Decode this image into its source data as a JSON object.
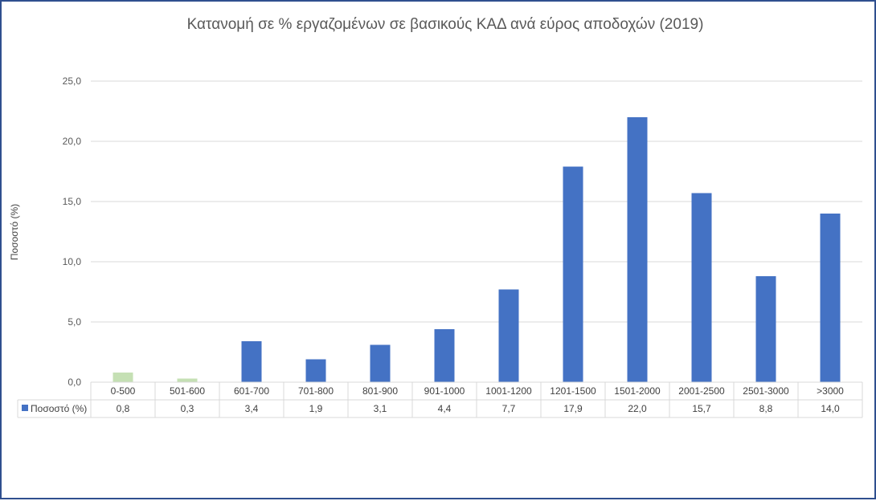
{
  "chart_data": {
    "type": "bar",
    "title": "Κατανομή σε % εργαζομένων σε βασικούς ΚΑΔ ανά εύρος αποδοχών (2019)",
    "ylabel": "Ποσοστό (%)",
    "xlabel": "",
    "ylim": [
      0,
      25
    ],
    "yticks": [
      "0,0",
      "5,0",
      "10,0",
      "15,0",
      "20,0",
      "25,0"
    ],
    "grid": true,
    "legend": "data-table",
    "categories": [
      "0-500",
      "501-600",
      "601-700",
      "701-800",
      "801-900",
      "901-1000",
      "1001-1200",
      "1201-1500",
      "1501-2000",
      "2001-2500",
      "2501-3000",
      ">3000"
    ],
    "series": [
      {
        "name": "Ποσοστό (%)",
        "values": [
          0.8,
          0.3,
          3.4,
          1.9,
          3.1,
          4.4,
          7.7,
          17.9,
          22.0,
          15.7,
          8.8,
          14.0
        ],
        "labels": [
          "0,8",
          "0,3",
          "3,4",
          "1,9",
          "3,1",
          "4,4",
          "7,7",
          "17,9",
          "22,0",
          "15,7",
          "8,8",
          "14,0"
        ],
        "color": "#4472c4",
        "highlight_color": "#c5e0b4",
        "highlight_indices": [
          0,
          1
        ]
      }
    ]
  }
}
